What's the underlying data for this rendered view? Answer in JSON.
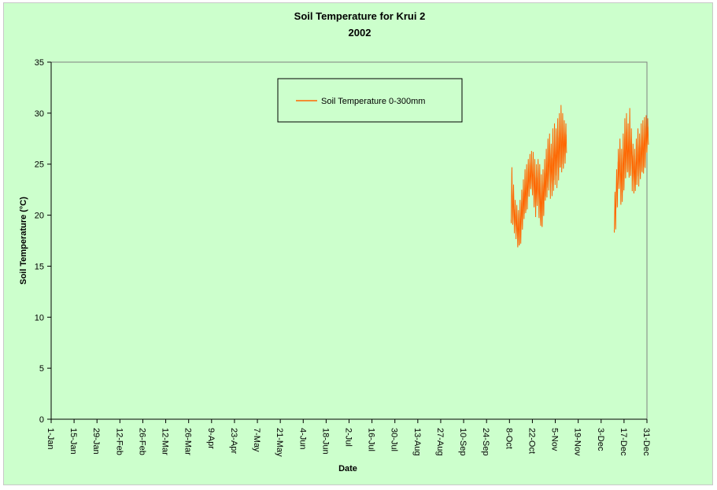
{
  "chart_data": {
    "type": "line",
    "title": "Soil Temperature for Krui 2",
    "subtitle": "2002",
    "xlabel": "Date",
    "ylabel": "Soil Temperature (°C)",
    "ylim": [
      0,
      35
    ],
    "yticks": [
      0,
      5,
      10,
      15,
      20,
      25,
      30,
      35
    ],
    "xlim": [
      "1-Jan",
      "31-Dec"
    ],
    "xticks": [
      {
        "label": "1-Jan",
        "day": 1
      },
      {
        "label": "15-Jan",
        "day": 15
      },
      {
        "label": "29-Jan",
        "day": 29
      },
      {
        "label": "12-Feb",
        "day": 43
      },
      {
        "label": "26-Feb",
        "day": 57
      },
      {
        "label": "12-Mar",
        "day": 71
      },
      {
        "label": "26-Mar",
        "day": 85
      },
      {
        "label": "9-Apr",
        "day": 99
      },
      {
        "label": "23-Apr",
        "day": 113
      },
      {
        "label": "7-May",
        "day": 127
      },
      {
        "label": "21-May",
        "day": 141
      },
      {
        "label": "4-Jun",
        "day": 155
      },
      {
        "label": "18-Jun",
        "day": 169
      },
      {
        "label": "2-Jul",
        "day": 183
      },
      {
        "label": "16-Jul",
        "day": 197
      },
      {
        "label": "30-Jul",
        "day": 211
      },
      {
        "label": "13-Aug",
        "day": 225
      },
      {
        "label": "27-Aug",
        "day": 239
      },
      {
        "label": "10-Sep",
        "day": 253
      },
      {
        "label": "24-Sep",
        "day": 267
      },
      {
        "label": "8-Oct",
        "day": 281
      },
      {
        "label": "22-Oct",
        "day": 295
      },
      {
        "label": "5-Nov",
        "day": 309
      },
      {
        "label": "19-Nov",
        "day": 323
      },
      {
        "label": "3-Dec",
        "day": 337
      },
      {
        "label": "17-Dec",
        "day": 351
      },
      {
        "label": "31-Dec",
        "day": 365
      }
    ],
    "grid": false,
    "legend_position": "top-center",
    "series": [
      {
        "name": "Soil Temperature  0-300mm",
        "color": "#ff6600",
        "segments": [
          [
            {
              "date": "9-Oct",
              "min": 18.8,
              "max": 24.7
            },
            {
              "date": "10-Oct",
              "min": 18.5,
              "max": 23.0
            },
            {
              "date": "11-Oct",
              "min": 17.8,
              "max": 21.5
            },
            {
              "date": "12-Oct",
              "min": 17.2,
              "max": 21.0
            },
            {
              "date": "13-Oct",
              "min": 16.5,
              "max": 20.5
            },
            {
              "date": "14-Oct",
              "min": 16.5,
              "max": 21.5
            },
            {
              "date": "15-Oct",
              "min": 17.5,
              "max": 22.5
            },
            {
              "date": "16-Oct",
              "min": 18.5,
              "max": 23.5
            },
            {
              "date": "17-Oct",
              "min": 19.5,
              "max": 24.5
            },
            {
              "date": "18-Oct",
              "min": 20.0,
              "max": 25.0
            },
            {
              "date": "19-Oct",
              "min": 21.0,
              "max": 25.5
            },
            {
              "date": "20-Oct",
              "min": 21.5,
              "max": 26.0
            },
            {
              "date": "21-Oct",
              "min": 22.0,
              "max": 26.3
            },
            {
              "date": "22-Oct",
              "min": 21.5,
              "max": 26.2
            },
            {
              "date": "23-Oct",
              "min": 20.0,
              "max": 25.5
            },
            {
              "date": "24-Oct",
              "min": 19.5,
              "max": 25.0
            },
            {
              "date": "25-Oct",
              "min": 20.5,
              "max": 25.5
            },
            {
              "date": "26-Oct",
              "min": 19.0,
              "max": 25.0
            },
            {
              "date": "27-Oct",
              "min": 18.2,
              "max": 24.0
            },
            {
              "date": "28-Oct",
              "min": 18.5,
              "max": 24.5
            },
            {
              "date": "29-Oct",
              "min": 20.0,
              "max": 25.5
            },
            {
              "date": "30-Oct",
              "min": 21.0,
              "max": 26.5
            },
            {
              "date": "31-Oct",
              "min": 22.0,
              "max": 27.5
            },
            {
              "date": "1-Nov",
              "min": 22.5,
              "max": 28.0
            },
            {
              "date": "2-Nov",
              "min": 21.5,
              "max": 27.0
            },
            {
              "date": "3-Nov",
              "min": 21.0,
              "max": 28.5
            },
            {
              "date": "4-Nov",
              "min": 22.5,
              "max": 29.0
            },
            {
              "date": "5-Nov",
              "min": 23.0,
              "max": 28.5
            },
            {
              "date": "6-Nov",
              "min": 22.5,
              "max": 29.5
            },
            {
              "date": "7-Nov",
              "min": 23.0,
              "max": 30.0
            },
            {
              "date": "8-Nov",
              "min": 23.5,
              "max": 30.8
            },
            {
              "date": "9-Nov",
              "min": 24.0,
              "max": 30.0
            },
            {
              "date": "10-Nov",
              "min": 24.5,
              "max": 29.3
            },
            {
              "date": "11-Nov",
              "min": 25.0,
              "max": 29.0
            }
          ],
          [
            {
              "date": "11-Dec",
              "min": 18.0,
              "max": 22.3
            },
            {
              "date": "12-Dec",
              "min": 20.0,
              "max": 24.5
            },
            {
              "date": "13-Dec",
              "min": 21.5,
              "max": 26.5
            },
            {
              "date": "14-Dec",
              "min": 22.0,
              "max": 27.5
            },
            {
              "date": "15-Dec",
              "min": 20.5,
              "max": 26.5
            },
            {
              "date": "16-Dec",
              "min": 21.5,
              "max": 28.0
            },
            {
              "date": "17-Dec",
              "min": 22.0,
              "max": 29.5
            },
            {
              "date": "18-Dec",
              "min": 23.0,
              "max": 30.0
            },
            {
              "date": "19-Dec",
              "min": 23.5,
              "max": 29.0
            },
            {
              "date": "20-Dec",
              "min": 23.0,
              "max": 30.5
            },
            {
              "date": "21-Dec",
              "min": 23.5,
              "max": 28.5
            },
            {
              "date": "22-Dec",
              "min": 22.0,
              "max": 27.0
            },
            {
              "date": "23-Dec",
              "min": 21.5,
              "max": 26.5
            },
            {
              "date": "24-Dec",
              "min": 22.5,
              "max": 27.5
            },
            {
              "date": "25-Dec",
              "min": 23.0,
              "max": 28.5
            },
            {
              "date": "26-Dec",
              "min": 22.5,
              "max": 28.0
            },
            {
              "date": "27-Dec",
              "min": 23.0,
              "max": 29.0
            },
            {
              "date": "28-Dec",
              "min": 23.5,
              "max": 29.3
            },
            {
              "date": "29-Dec",
              "min": 24.0,
              "max": 29.6
            },
            {
              "date": "30-Dec",
              "min": 25.0,
              "max": 29.8
            },
            {
              "date": "31-Dec",
              "min": 26.0,
              "max": 29.5
            }
          ]
        ]
      }
    ]
  }
}
